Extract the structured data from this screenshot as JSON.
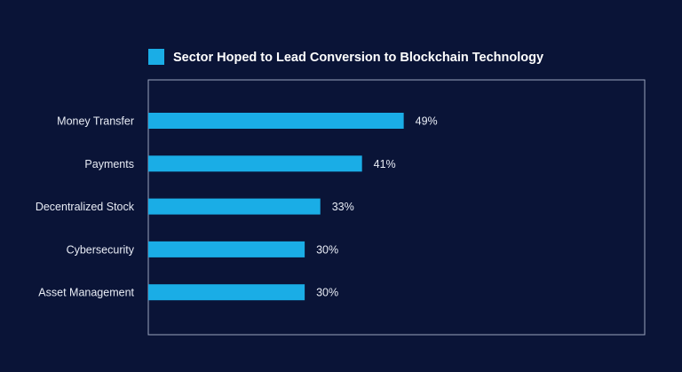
{
  "chart_data": {
    "type": "bar",
    "orientation": "horizontal",
    "categories": [
      "Money Transfer",
      "Payments",
      "Decentralized Stock",
      "Cybersecurity",
      "Asset Management"
    ],
    "series": [
      {
        "name": "Sector Hoped to Lead Conversion to Blockchain Technology",
        "values": [
          49,
          41,
          33,
          30,
          30
        ]
      }
    ],
    "data_labels": [
      "49%",
      "41%",
      "33%",
      "30%",
      "30%"
    ],
    "legend": "top",
    "grid": false,
    "colors": {
      "bar": "#1aade6",
      "background": "#0a1437",
      "frame": "#9aa3bd"
    }
  }
}
